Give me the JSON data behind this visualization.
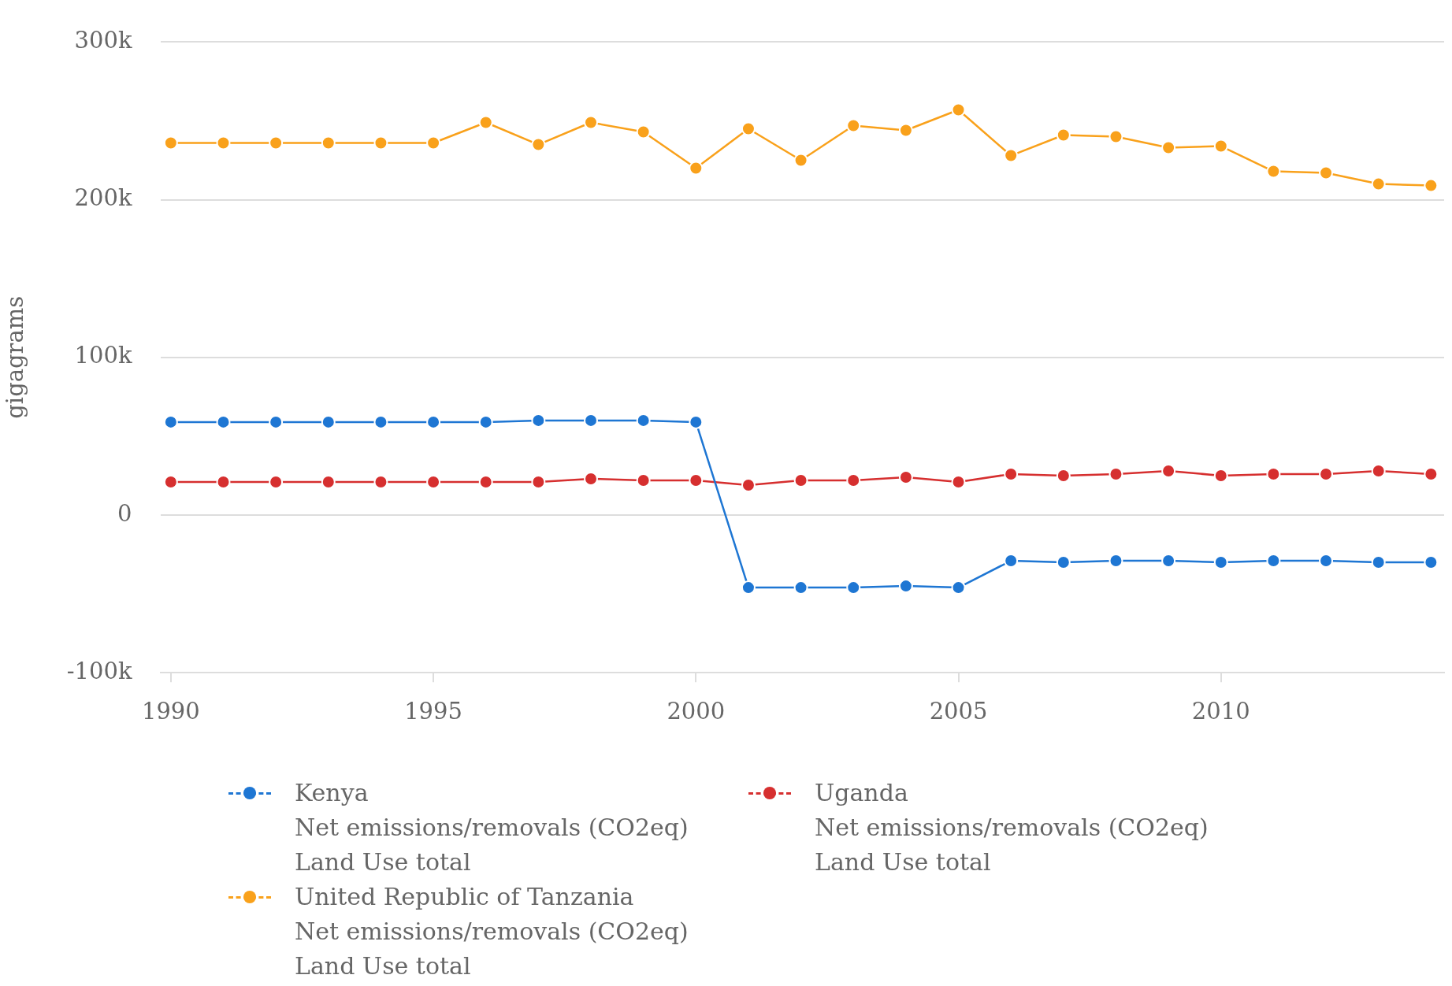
{
  "chart_data": {
    "type": "line",
    "ylabel": "gigagrams",
    "x": [
      1990,
      1991,
      1992,
      1993,
      1994,
      1995,
      1996,
      1997,
      1998,
      1999,
      2000,
      2001,
      2002,
      2003,
      2004,
      2005,
      2006,
      2007,
      2008,
      2009,
      2010,
      2011,
      2012,
      2013,
      2014
    ],
    "series": [
      {
        "name": "Kenya\nNet emissions/removals (CO2eq)\nLand Use total",
        "color": "#1e76d3",
        "values": [
          59000,
          59000,
          59000,
          59000,
          59000,
          59000,
          59000,
          60000,
          60000,
          60000,
          59000,
          -46000,
          -46000,
          -46000,
          -45000,
          -46000,
          -29000,
          -30000,
          -29000,
          -29000,
          -30000,
          -29000,
          -29000,
          -30000,
          -30000
        ]
      },
      {
        "name": "Uganda\nNet emissions/removals (CO2eq)\nLand Use total",
        "color": "#d62f2f",
        "values": [
          21000,
          21000,
          21000,
          21000,
          21000,
          21000,
          21000,
          21000,
          23000,
          22000,
          22000,
          19000,
          22000,
          22000,
          24000,
          21000,
          26000,
          25000,
          26000,
          28000,
          25000,
          26000,
          26000,
          28000,
          26000
        ]
      },
      {
        "name": "United Republic of Tanzania\nNet emissions/removals (CO2eq)\nLand Use total",
        "color": "#f9a11b",
        "values": [
          236000,
          236000,
          236000,
          236000,
          236000,
          236000,
          249000,
          235000,
          249000,
          243000,
          220000,
          245000,
          225000,
          247000,
          244000,
          257000,
          228000,
          241000,
          240000,
          233000,
          234000,
          218000,
          217000,
          210000,
          209000
        ]
      }
    ],
    "xlim": [
      1989.8,
      2014.25
    ],
    "xticks": [
      1990,
      1995,
      2000,
      2005,
      2010
    ],
    "ylim": [
      -100000,
      300000
    ],
    "yticks": [
      {
        "value": -100000,
        "label": "-100k"
      },
      0,
      {
        "value": 100000,
        "label": "100k"
      },
      {
        "value": 200000,
        "label": "200k"
      },
      {
        "value": 300000,
        "label": "300k"
      }
    ],
    "grid": "y",
    "legend": "bottom",
    "marker": "circle",
    "line_style": "solid"
  }
}
